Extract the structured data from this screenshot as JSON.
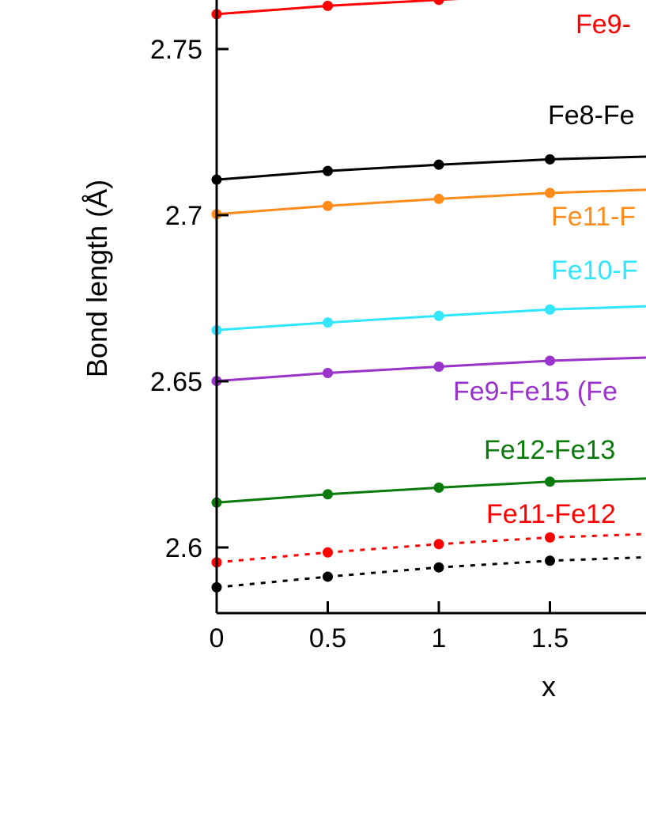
{
  "chart_data": {
    "type": "line",
    "title": "",
    "xlabel": "x",
    "ylabel": "Bond length (Å)",
    "xlim": [
      0,
      2.0
    ],
    "ylim": [
      2.58,
      2.77
    ],
    "x_ticks": [
      "0",
      "0.5",
      "1",
      "1.5"
    ],
    "y_ticks": [
      "2.6",
      "2.65",
      "2.7",
      "2.75"
    ],
    "x": [
      0,
      0.5,
      1,
      1.5
    ],
    "grid": false,
    "series": [
      {
        "name": "Fe9-",
        "color": "#ff0000",
        "style": "solid",
        "values": [
          2.7605,
          2.763,
          2.7648,
          2.7665
        ]
      },
      {
        "name": "Fe8-Fe",
        "color": "#000000",
        "style": "solid",
        "values": [
          2.7107,
          2.7133,
          2.7152,
          2.7168
        ]
      },
      {
        "name": "Fe11-F",
        "color": "#ff8c1a",
        "style": "solid",
        "values": [
          2.7003,
          2.7028,
          2.7049,
          2.7067
        ]
      },
      {
        "name": "Fe10-F",
        "color": "#33e6ff",
        "style": "solid",
        "values": [
          2.6654,
          2.6677,
          2.6697,
          2.6716
        ]
      },
      {
        "name": "Fe9-Fe15 (Fe",
        "color": "#9933cc",
        "style": "solid",
        "values": [
          2.6501,
          2.6525,
          2.6544,
          2.6562
        ]
      },
      {
        "name": "Fe12-Fe13",
        "color": "#0a7a0a",
        "style": "solid",
        "values": [
          2.6135,
          2.616,
          2.618,
          2.6198
        ]
      },
      {
        "name": "Fe11-Fe12",
        "color": "#ff0000",
        "style": "dotted",
        "values": [
          2.5955,
          2.5985,
          2.601,
          2.603
        ]
      },
      {
        "name": "",
        "color": "#000000",
        "style": "dotted",
        "values": [
          2.588,
          2.5912,
          2.594,
          2.596
        ]
      }
    ]
  }
}
